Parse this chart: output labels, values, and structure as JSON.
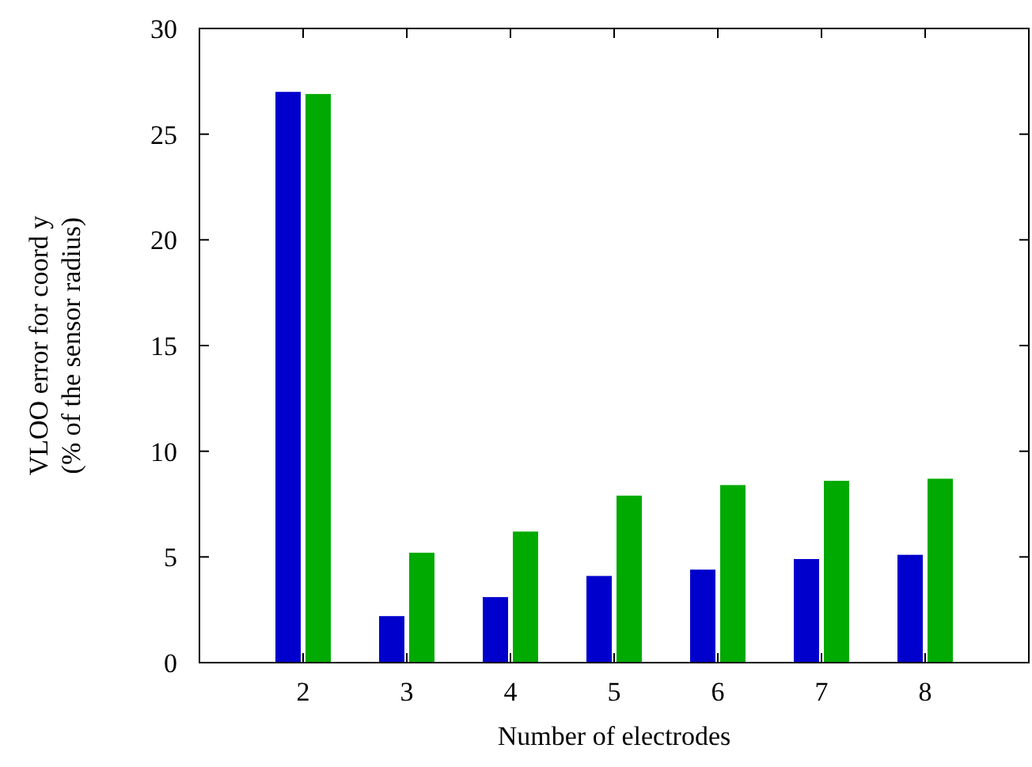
{
  "chart_data": {
    "type": "bar",
    "xlabel": "Number of electrodes",
    "ylabel": "VLOO error for coord y\n(% of the sensor radius)",
    "categories": [
      "2",
      "3",
      "4",
      "5",
      "6",
      "7",
      "8"
    ],
    "series": [
      {
        "color": "#0000cc",
        "values": [
          27.0,
          2.2,
          3.1,
          4.1,
          4.4,
          4.9,
          5.1
        ]
      },
      {
        "color": "#00aa00",
        "values": [
          26.9,
          5.2,
          6.2,
          7.9,
          8.4,
          8.6,
          8.7
        ]
      }
    ],
    "ylim": [
      0,
      30
    ],
    "yticks": [
      0,
      5,
      10,
      15,
      20,
      25,
      30
    ],
    "grid": false
  }
}
